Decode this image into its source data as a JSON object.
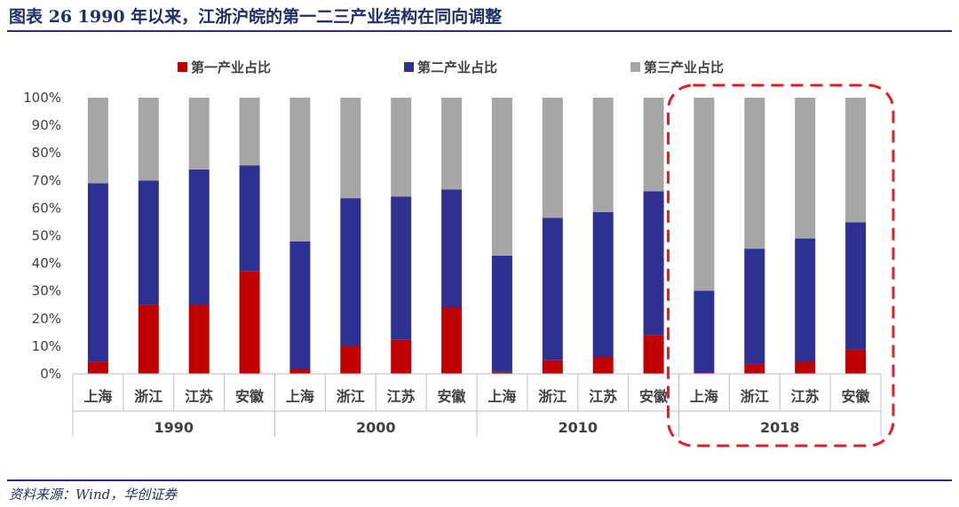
{
  "header": {
    "title": "图表 26   1990 年以来，江浙沪皖的第一二三产业结构在同向调整"
  },
  "footer": {
    "source": "资料来源：Wind，华创证券"
  },
  "colors": {
    "primary": "#c00000",
    "secondary": "#2e3192",
    "tertiary": "#a6a6a6",
    "highlight": "#e31e24",
    "rule": "#2b2f7a"
  },
  "chart_data": {
    "type": "bar",
    "stacked": true,
    "title": "",
    "xlabel": "",
    "ylabel": "",
    "ylim": [
      0,
      100
    ],
    "yticks": [
      "0%",
      "10%",
      "20%",
      "30%",
      "40%",
      "50%",
      "60%",
      "70%",
      "80%",
      "90%",
      "100%"
    ],
    "legend_position": "top",
    "grid": false,
    "groups": [
      "1990",
      "2000",
      "2010",
      "2018"
    ],
    "categories": [
      "上海",
      "浙江",
      "江苏",
      "安徽"
    ],
    "highlighted_group": "2018",
    "series": [
      {
        "name": "第一产业占比",
        "color": "#c00000",
        "values": [
          [
            4.3,
            24.9,
            25.1,
            37.2
          ],
          [
            1.6,
            10.3,
            12.3,
            24.1
          ],
          [
            0.7,
            4.9,
            6.1,
            14.0
          ],
          [
            0.3,
            3.5,
            4.5,
            8.8
          ]
        ]
      },
      {
        "name": "第二产业占比",
        "color": "#2e3192",
        "values": [
          [
            64.7,
            45.1,
            48.9,
            38.3
          ],
          [
            46.3,
            53.3,
            51.9,
            42.7
          ],
          [
            42.1,
            51.6,
            52.5,
            52.1
          ],
          [
            29.8,
            41.8,
            44.5,
            46.1
          ]
        ]
      },
      {
        "name": "第三产业占比",
        "color": "#a6a6a6",
        "values": [
          [
            31.0,
            30.0,
            26.0,
            24.5
          ],
          [
            52.1,
            36.4,
            35.8,
            33.2
          ],
          [
            57.2,
            43.5,
            41.4,
            33.9
          ],
          [
            69.9,
            54.7,
            51.0,
            45.1
          ]
        ]
      }
    ]
  }
}
